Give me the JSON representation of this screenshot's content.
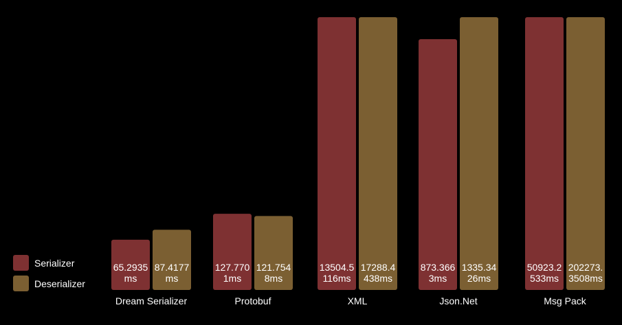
{
  "chart_data": {
    "type": "bar",
    "categories": [
      "Dream Serializer",
      "Protobuf",
      "XML",
      "Json.Net",
      "Msg Pack"
    ],
    "series": [
      {
        "name": "Serializer",
        "color": "#7e3132",
        "values": [
          65.2935,
          127.7701,
          13504.5116,
          873.3663,
          50923.2533
        ],
        "labels": [
          [
            "65.2935",
            "ms"
          ],
          [
            "127.770",
            "1ms"
          ],
          [
            "13504.5",
            "116ms"
          ],
          [
            "873.366",
            "3ms"
          ],
          [
            "50923.2",
            "533ms"
          ]
        ]
      },
      {
        "name": "Deserializer",
        "color": "#7b5f32",
        "values": [
          87.4177,
          121.7548,
          17288.4438,
          1335.3426,
          202273.3508
        ],
        "labels": [
          [
            "87.4177",
            "ms"
          ],
          [
            "121.754",
            "8ms"
          ],
          [
            "17288.4",
            "438ms"
          ],
          [
            "1335.34",
            "26ms"
          ],
          [
            "202273.",
            "3508ms"
          ]
        ]
      }
    ],
    "value_scale": "relative bar heights; XML, Json.Net and Msg Pack bars all reach the top of the plot",
    "legend_position": "bottom-left",
    "grid": false
  }
}
